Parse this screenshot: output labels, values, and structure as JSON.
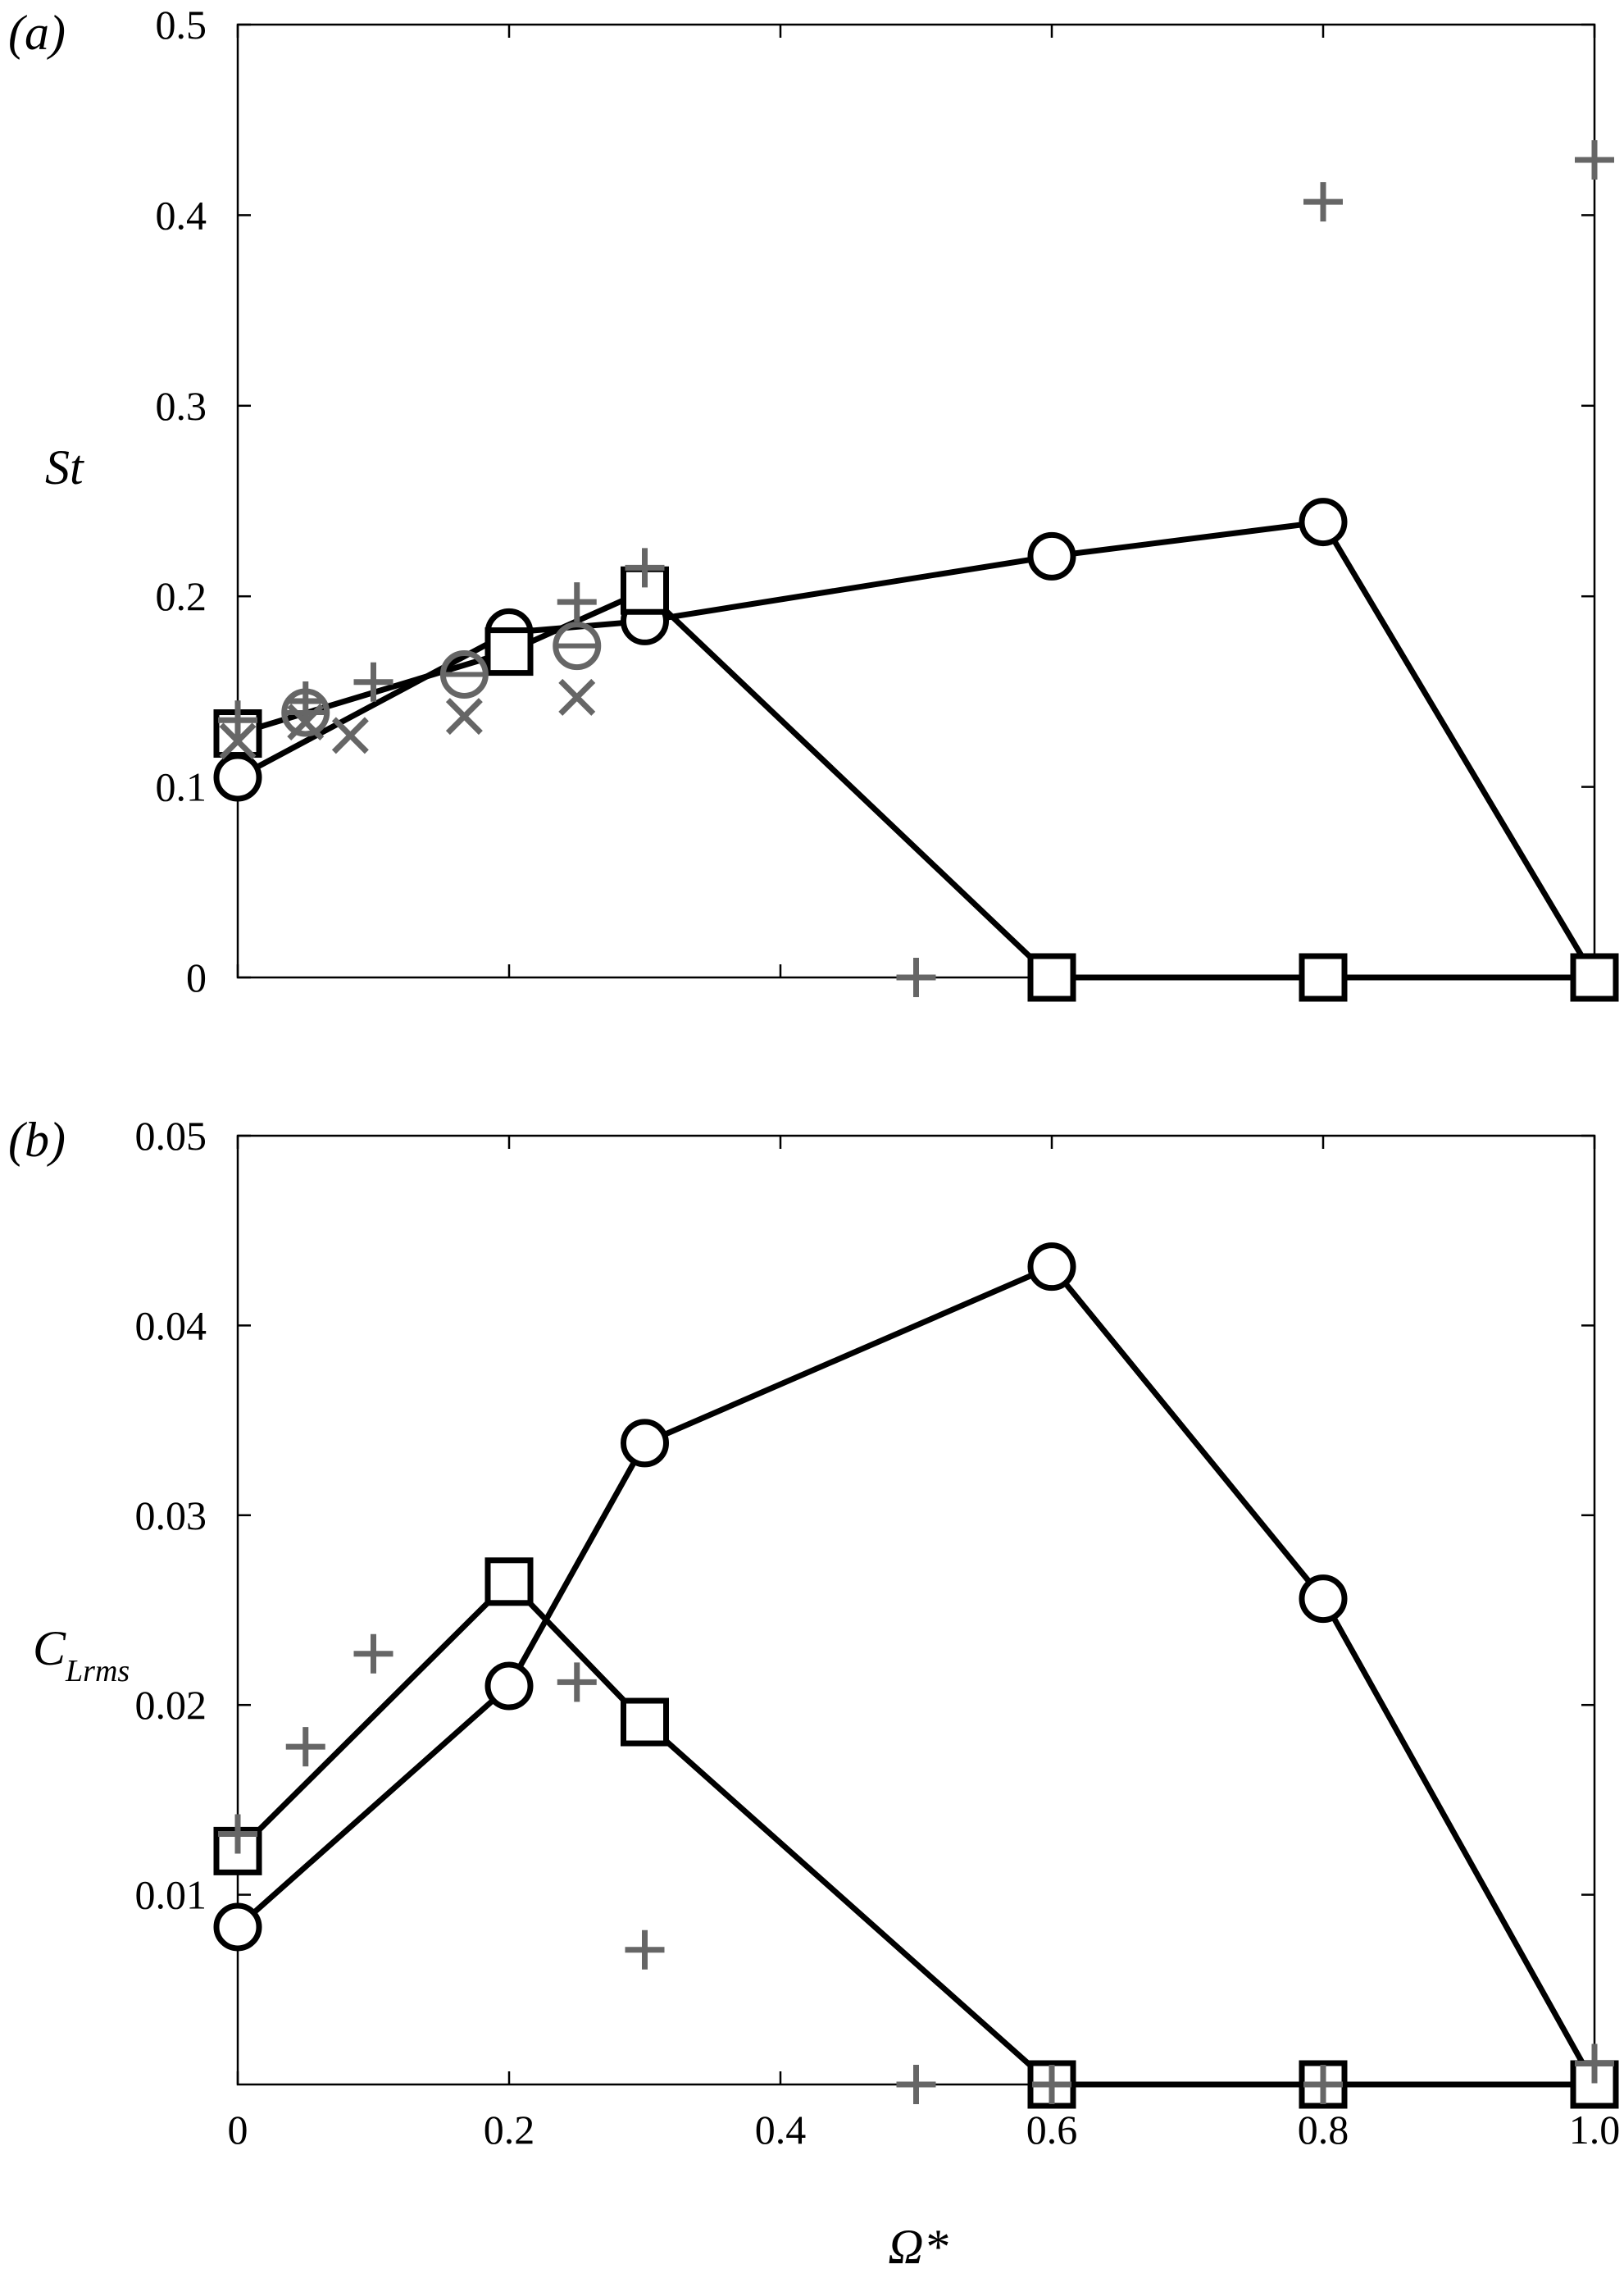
{
  "colors": {
    "primary": "#000000",
    "secondary": "#666666"
  },
  "chart_data": [
    {
      "type": "scatter",
      "panel_label": "(a)",
      "ylabel": "St",
      "xlim": [
        0,
        1.0
      ],
      "ylim": [
        0,
        0.5
      ],
      "xticks": [
        0,
        0.2,
        0.4,
        0.6,
        0.8,
        1.0
      ],
      "yticks": [
        0,
        0.1,
        0.2,
        0.3,
        0.4,
        0.5
      ],
      "ytick_labels": [
        "0",
        "0.1",
        "0.2",
        "0.3",
        "0.4",
        "0.5"
      ],
      "series": [
        {
          "marker": "circle",
          "color": "#000000",
          "line": true,
          "x": [
            0,
            0.2,
            0.3,
            0.6,
            0.8,
            1.0
          ],
          "y": [
            0.105,
            0.181,
            0.187,
            0.221,
            0.239,
            0
          ]
        },
        {
          "marker": "square",
          "color": "#000000",
          "line": true,
          "x": [
            0,
            0.2,
            0.3,
            0.6,
            0.8,
            1.0
          ],
          "y": [
            0.128,
            0.171,
            0.203,
            0,
            0,
            0
          ]
        },
        {
          "marker": "plus",
          "color": "#666666",
          "line": false,
          "x": [
            0,
            0.05,
            0.1,
            0.25,
            0.3,
            0.5,
            0.8,
            1.0
          ],
          "y": [
            0.135,
            0.145,
            0.155,
            0.197,
            0.215,
            0,
            0.407,
            0.429
          ]
        },
        {
          "marker": "cross",
          "color": "#666666",
          "line": false,
          "x": [
            0,
            0.05,
            0.083,
            0.167,
            0.25
          ],
          "y": [
            0.124,
            0.134,
            0.127,
            0.137,
            0.147
          ]
        },
        {
          "marker": "circle-dash",
          "color": "#666666",
          "line": false,
          "x": [
            0.05,
            0.167,
            0.25
          ],
          "y": [
            0.139,
            0.159,
            0.174
          ]
        }
      ]
    },
    {
      "type": "scatter",
      "panel_label": "(b)",
      "ylabel": "C",
      "ylabel_sub": "Lrms",
      "xlabel": "Ω*",
      "xlim": [
        0,
        1.0
      ],
      "ylim": [
        0,
        0.05
      ],
      "xticks": [
        0,
        0.2,
        0.4,
        0.6,
        0.8,
        1.0
      ],
      "xtick_labels": [
        "0",
        "0.2",
        "0.4",
        "0.6",
        "0.8",
        "1.0"
      ],
      "yticks": [
        0.01,
        0.02,
        0.03,
        0.04,
        0.05
      ],
      "ytick_labels": [
        "0.01",
        "0.02",
        "0.03",
        "0.04",
        "0.05"
      ],
      "series": [
        {
          "marker": "circle",
          "color": "#000000",
          "line": true,
          "x": [
            0,
            0.2,
            0.3,
            0.6,
            0.8,
            1.0
          ],
          "y": [
            0.0083,
            0.021,
            0.0338,
            0.0431,
            0.0256,
            0
          ]
        },
        {
          "marker": "square",
          "color": "#000000",
          "line": true,
          "x": [
            0,
            0.2,
            0.3,
            0.6,
            0.8,
            1.0
          ],
          "y": [
            0.0123,
            0.0265,
            0.0191,
            0,
            0,
            0
          ]
        },
        {
          "marker": "plus",
          "color": "#666666",
          "line": false,
          "x": [
            0,
            0.05,
            0.1,
            0.25,
            0.3,
            0.5,
            0.6,
            0.8,
            1.0
          ],
          "y": [
            0.0132,
            0.0178,
            0.0227,
            0.0212,
            0.0071,
            0,
            0,
            0,
            0.0011
          ]
        }
      ]
    }
  ]
}
